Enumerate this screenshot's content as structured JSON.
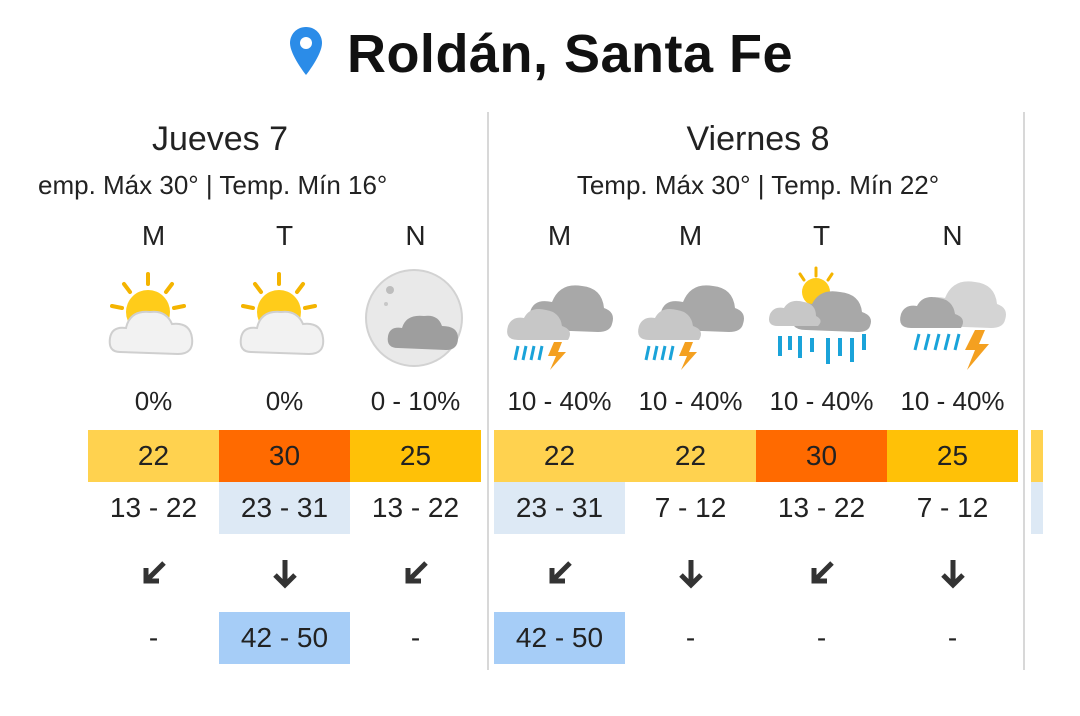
{
  "location": {
    "name": "Roldán, Santa Fe",
    "icon": "location-pin-icon"
  },
  "colors": {
    "pin": "#2b8ce8",
    "warm": "#ffd24f",
    "hot": "#ff6a00",
    "mid": "#ffc107",
    "light_blue": "#dde9f5",
    "gust_blue": "#a6cdf7"
  },
  "days": [
    {
      "title": "Jueves 7",
      "summary": "emp. Máx 30° | Temp. Mín 16°",
      "periods": [
        {
          "label": "M",
          "icon": "partly-sunny-icon",
          "prec": "0%",
          "temp": "22",
          "range": "13 - 22",
          "gust": "-"
        },
        {
          "label": "T",
          "icon": "partly-sunny-icon",
          "prec": "0%",
          "temp": "30",
          "range": "23 - 31",
          "gust": "42 - 50"
        },
        {
          "label": "N",
          "icon": "cloudy-night-icon",
          "prec": "0 - 10%",
          "temp": "25",
          "range": "13 - 22",
          "gust": "-"
        }
      ]
    },
    {
      "title": "Viernes 8",
      "summary": "Temp. Máx 30° | Temp. Mín 22°",
      "periods": [
        {
          "label": "M",
          "icon": "thunderstorm-icon",
          "prec": "10 - 40%",
          "temp": "22",
          "range": "23 - 31",
          "gust": "42 - 50"
        },
        {
          "label": "M",
          "icon": "thunderstorm-icon",
          "prec": "10 - 40%",
          "temp": "22",
          "range": "7 - 12",
          "gust": "-"
        },
        {
          "label": "T",
          "icon": "sun-rain-icon",
          "prec": "10 - 40%",
          "temp": "30",
          "range": "13 - 22",
          "gust": "-"
        },
        {
          "label": "N",
          "icon": "thunderstorm-icon",
          "prec": "10 - 40%",
          "temp": "25",
          "range": "7 - 12",
          "gust": "-"
        }
      ]
    }
  ]
}
